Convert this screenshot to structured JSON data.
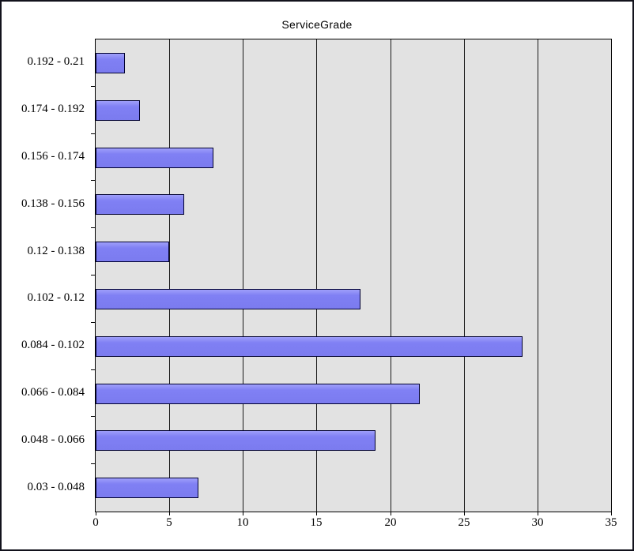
{
  "chart_data": {
    "type": "bar",
    "orientation": "horizontal",
    "title": "ServiceGrade",
    "categories": [
      "0.192 - 0.21",
      "0.174 - 0.192",
      "0.156 - 0.174",
      "0.138 - 0.156",
      "0.12 - 0.138",
      "0.102 - 0.12",
      "0.084 - 0.102",
      "0.066 - 0.084",
      "0.048 - 0.066",
      "0.03 - 0.048"
    ],
    "values": [
      2,
      3,
      8,
      6,
      5,
      18,
      29,
      22,
      19,
      7
    ],
    "xlabel": "",
    "ylabel": "",
    "xlim": [
      0,
      35
    ],
    "x_ticks": [
      0,
      5,
      10,
      15,
      20,
      25,
      30,
      35
    ],
    "grid": "vertical",
    "legend": "none",
    "colors": {
      "bar_fill": "#7e7ef2",
      "bar_border": "#000030",
      "plot_background": "#e2e2e2",
      "gridline": "#1a1a1a",
      "frame_border": "#12121c",
      "text": "#000000"
    }
  }
}
